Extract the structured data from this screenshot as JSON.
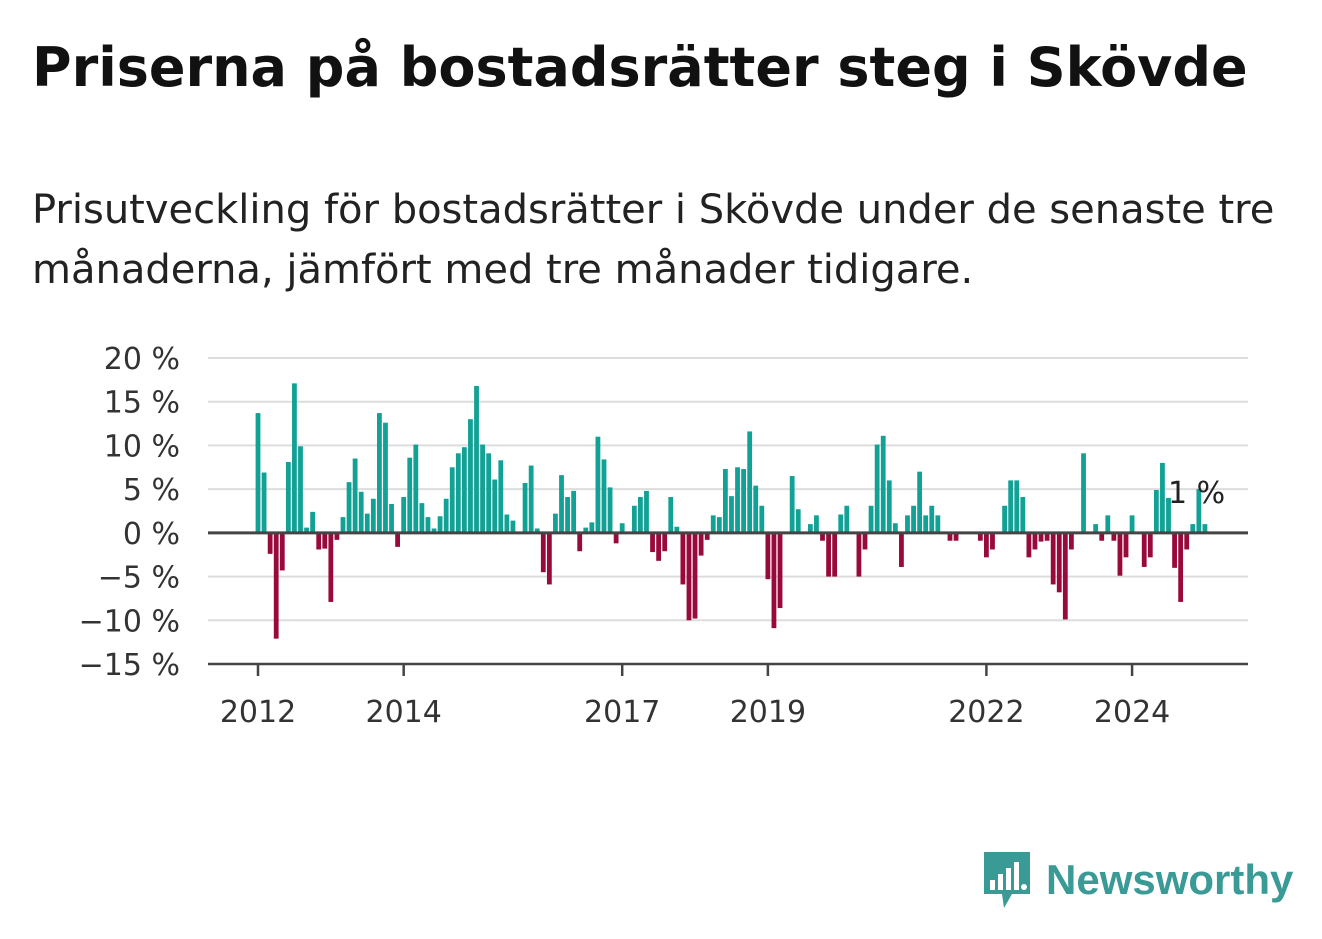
{
  "header": {
    "title": "Priserna på bostadsrätter steg i Skövde",
    "subtitle": "Prisutveckling för bostadsrätter i Skövde under de senaste tre månaderna, jämfört med tre månader tidigare."
  },
  "brand": {
    "name": "Newsworthy",
    "icon": "newsworthy-logo-icon",
    "color": "#3a9a96"
  },
  "chart_data": {
    "type": "bar",
    "title": "",
    "xlabel": "",
    "ylabel": "",
    "ylim": [
      -15,
      20
    ],
    "yticks": [
      20,
      15,
      10,
      5,
      0,
      -5,
      -10,
      -15
    ],
    "ytick_labels": [
      "20 %",
      "15 %",
      "10 %",
      "5 %",
      "0 %",
      "−5 %",
      "−10 %",
      "−15 %"
    ],
    "xtick_labels": [
      "2012",
      "2014",
      "2017",
      "2019",
      "2022",
      "2024"
    ],
    "xtick_index": [
      0,
      24,
      60,
      84,
      120,
      144
    ],
    "grid": true,
    "colors": {
      "positive": "#12a195",
      "negative": "#990a3c",
      "grid": "#dddddd",
      "axis": "#444444"
    },
    "end_label": "1 %",
    "start": "2012-01",
    "frequency": "monthly",
    "values": [
      13.7,
      6.9,
      -2.4,
      -12.1,
      -4.3,
      8.1,
      17.1,
      9.9,
      0.6,
      2.4,
      -1.9,
      -1.8,
      -7.9,
      -0.8,
      1.8,
      5.8,
      8.5,
      4.7,
      2.2,
      3.9,
      13.7,
      12.6,
      3.3,
      -1.6,
      4.1,
      8.6,
      10.1,
      3.4,
      1.8,
      0.5,
      1.9,
      3.9,
      7.5,
      9.1,
      9.8,
      13.0,
      16.8,
      10.1,
      9.1,
      6.1,
      8.3,
      2.1,
      1.4,
      0.0,
      5.7,
      7.7,
      0.5,
      -4.5,
      -5.9,
      2.2,
      6.6,
      4.1,
      4.8,
      -2.1,
      0.6,
      1.2,
      11.0,
      8.4,
      5.2,
      -1.2,
      1.1,
      0.0,
      3.1,
      4.1,
      4.8,
      -2.2,
      -3.2,
      -2.1,
      4.1,
      0.7,
      -5.9,
      -10.0,
      -9.8,
      -2.6,
      -0.8,
      2.0,
      1.8,
      7.3,
      4.2,
      7.5,
      7.3,
      11.6,
      5.4,
      3.1,
      -5.3,
      -10.9,
      -8.6,
      0.0,
      6.5,
      2.7,
      -0.1,
      1.0,
      2.0,
      -0.9,
      -5.0,
      -5.0,
      2.1,
      3.1,
      0.0,
      -5.0,
      -1.9,
      3.1,
      10.1,
      11.1,
      6.0,
      1.1,
      -3.9,
      2.0,
      3.1,
      7.0,
      2.0,
      3.1,
      2.0,
      0.0,
      -0.9,
      -0.9,
      0.0,
      0.0,
      0.0,
      -0.9,
      -2.8,
      -1.9,
      0.0,
      3.1,
      6.0,
      6.0,
      4.1,
      -2.8,
      -1.9,
      -1.0,
      -0.9,
      -5.9,
      -6.8,
      -9.9,
      -1.9,
      0.0,
      9.1,
      0.0,
      1.0,
      -0.9,
      2.0,
      -0.9,
      -4.9,
      -2.8,
      2.0,
      0.0,
      -3.9,
      -2.8,
      4.9,
      8.0,
      4.0,
      -4.0,
      -7.9,
      -1.9,
      1.0,
      5.0,
      1.0
    ]
  }
}
